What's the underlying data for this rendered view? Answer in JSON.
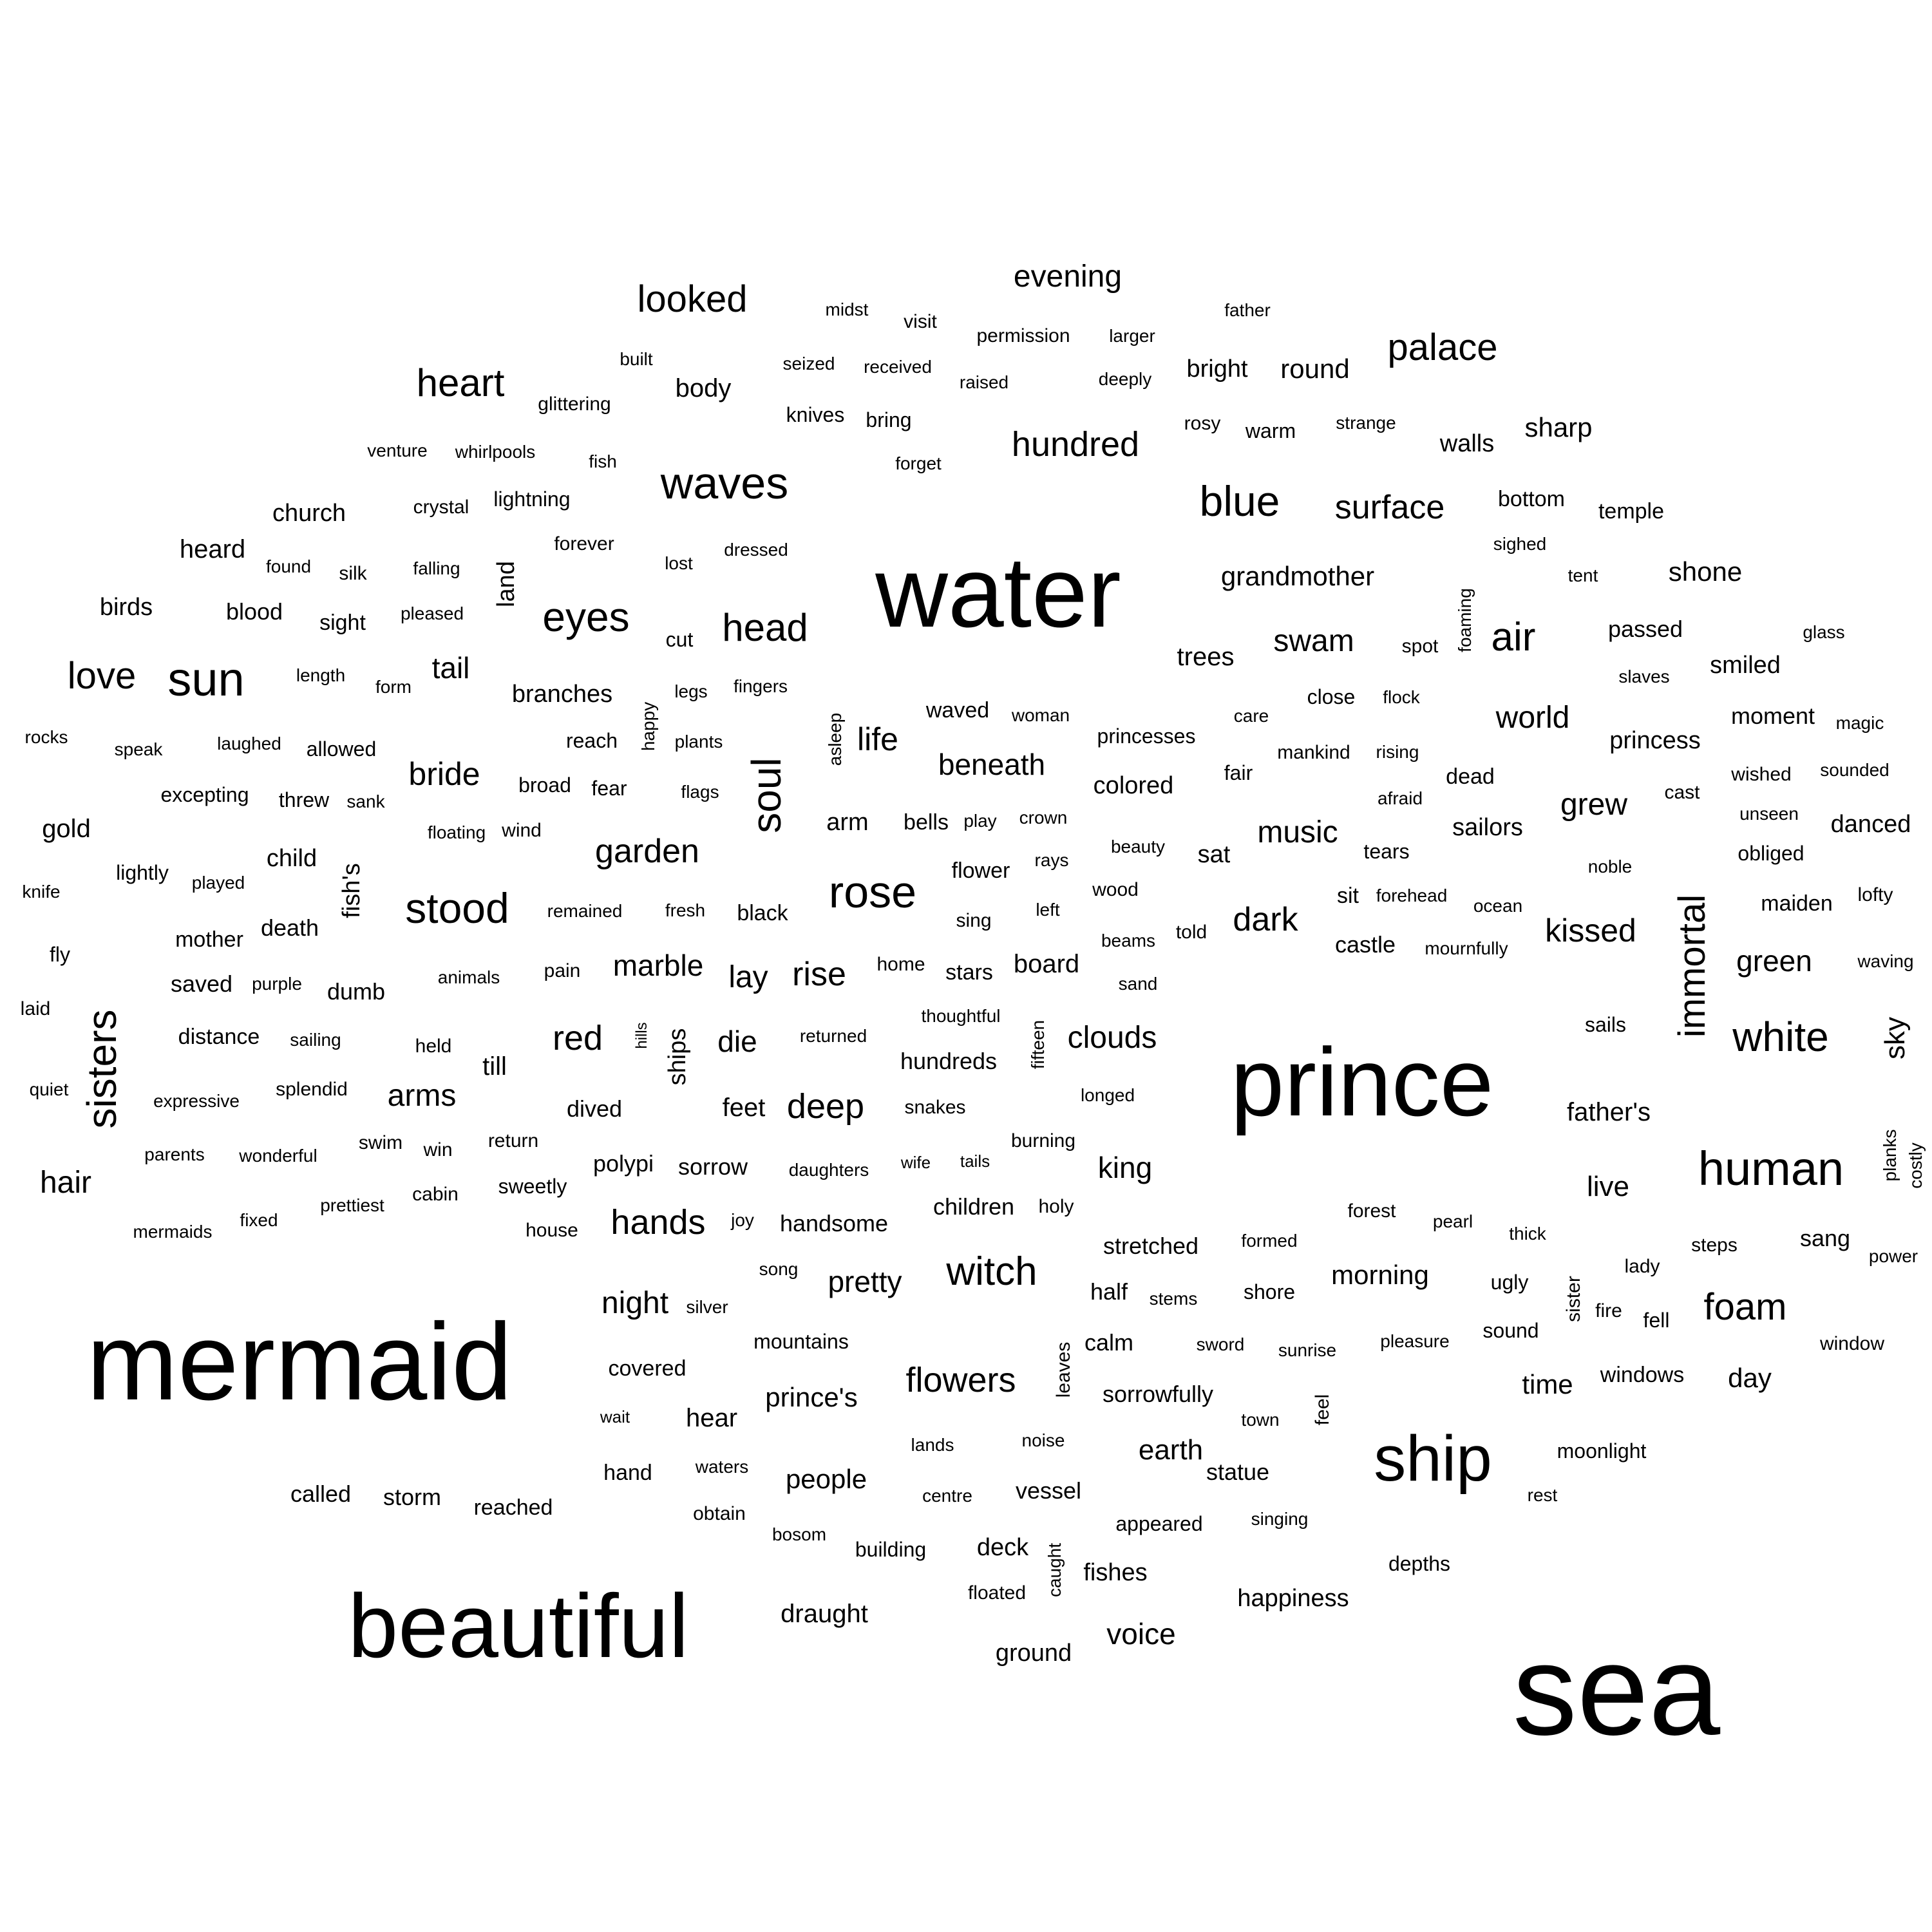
{
  "text_color": "#000000",
  "background": "#ffffff",
  "words": [
    {
      "text": "sea",
      "size": 28
    },
    {
      "text": "water",
      "size": 27
    },
    {
      "text": "prince",
      "size": 26
    },
    {
      "text": "mermaid",
      "size": 26
    },
    {
      "text": "beautiful",
      "size": 22
    },
    {
      "text": "ship",
      "size": 16
    },
    {
      "text": "waves",
      "size": 11
    },
    {
      "text": "human",
      "size": 11
    },
    {
      "text": "stood",
      "size": 11
    },
    {
      "text": "rose",
      "size": 11
    },
    {
      "text": "sun",
      "size": 11
    },
    {
      "text": "eyes",
      "size": 10
    },
    {
      "text": "blue",
      "size": 10
    },
    {
      "text": "white",
      "size": 10
    },
    {
      "text": "sisters",
      "size": 10
    },
    {
      "text": "soul",
      "size": 10
    },
    {
      "text": "immortal",
      "size": 10
    },
    {
      "text": "palace",
      "size": 9
    },
    {
      "text": "heart",
      "size": 9
    },
    {
      "text": "looked",
      "size": 9
    },
    {
      "text": "witch",
      "size": 9
    },
    {
      "text": "foam",
      "size": 9
    },
    {
      "text": "head",
      "size": 9
    },
    {
      "text": "love",
      "size": 9
    },
    {
      "text": "air",
      "size": 9
    },
    {
      "text": "hundred",
      "size": 8
    },
    {
      "text": "surface",
      "size": 8
    },
    {
      "text": "deep",
      "size": 8
    },
    {
      "text": "flowers",
      "size": 8
    },
    {
      "text": "hands",
      "size": 8
    },
    {
      "text": "garden",
      "size": 8
    },
    {
      "text": "red",
      "size": 8
    },
    {
      "text": "dark",
      "size": 8
    },
    {
      "text": "kissed",
      "size": 8
    },
    {
      "text": "evening",
      "size": 7
    },
    {
      "text": "swam",
      "size": 7
    },
    {
      "text": "world",
      "size": 7
    },
    {
      "text": "bride",
      "size": 7
    },
    {
      "text": "arms",
      "size": 7
    },
    {
      "text": "clouds",
      "size": 7
    },
    {
      "text": "rise",
      "size": 7
    },
    {
      "text": "lay",
      "size": 7
    },
    {
      "text": "music",
      "size": 7
    },
    {
      "text": "grew",
      "size": 7
    },
    {
      "text": "green",
      "size": 7
    },
    {
      "text": "king",
      "size": 7
    },
    {
      "text": "life",
      "size": 7
    },
    {
      "text": "hair",
      "size": 7
    },
    {
      "text": "marble",
      "size": 7
    },
    {
      "text": "night",
      "size": 7
    },
    {
      "text": "pretty",
      "size": 7
    },
    {
      "text": "beneath",
      "size": 7
    },
    {
      "text": "grandmother",
      "size": 7
    },
    {
      "text": "round",
      "size": 7
    },
    {
      "text": "sky",
      "size": 7
    },
    {
      "text": "sharp",
      "size": 7
    },
    {
      "text": "shone",
      "size": 7
    },
    {
      "text": "earth",
      "size": 7
    },
    {
      "text": "voice",
      "size": 7
    },
    {
      "text": "live",
      "size": 7
    },
    {
      "text": "morning",
      "size": 7
    },
    {
      "text": "people",
      "size": 7
    },
    {
      "text": "prince's",
      "size": 7
    },
    {
      "text": "time",
      "size": 7
    },
    {
      "text": "day",
      "size": 7
    },
    {
      "text": "bright",
      "size": 6
    },
    {
      "text": "walls",
      "size": 6
    },
    {
      "text": "body",
      "size": 6
    },
    {
      "text": "trees",
      "size": 6
    },
    {
      "text": "church",
      "size": 6
    },
    {
      "text": "heard",
      "size": 6
    },
    {
      "text": "birds",
      "size": 6
    },
    {
      "text": "blood",
      "size": 6
    },
    {
      "text": "tail",
      "size": 6
    },
    {
      "text": "branches",
      "size": 6
    },
    {
      "text": "gold",
      "size": 6
    },
    {
      "text": "child",
      "size": 6
    },
    {
      "text": "death",
      "size": 6
    },
    {
      "text": "mother",
      "size": 6
    },
    {
      "text": "saved",
      "size": 6
    },
    {
      "text": "dumb",
      "size": 6
    },
    {
      "text": "distance",
      "size": 6
    },
    {
      "text": "till",
      "size": 6
    },
    {
      "text": "die",
      "size": 6
    },
    {
      "text": "feet",
      "size": 6
    },
    {
      "text": "dived",
      "size": 6
    },
    {
      "text": "sorrow",
      "size": 6
    },
    {
      "text": "polypi",
      "size": 6
    },
    {
      "text": "handsome",
      "size": 6
    },
    {
      "text": "children",
      "size": 6
    },
    {
      "text": "hundreds",
      "size": 6
    },
    {
      "text": "colored",
      "size": 6
    },
    {
      "text": "princess",
      "size": 6
    },
    {
      "text": "moment",
      "size": 6
    },
    {
      "text": "smiled",
      "size": 6
    },
    {
      "text": "passed",
      "size": 6
    },
    {
      "text": "danced",
      "size": 6
    },
    {
      "text": "sailors",
      "size": 6
    },
    {
      "text": "castle",
      "size": 6
    },
    {
      "text": "sat",
      "size": 6
    },
    {
      "text": "father's",
      "size": 6
    },
    {
      "text": "sang",
      "size": 6
    },
    {
      "text": "half",
      "size": 6
    },
    {
      "text": "calm",
      "size": 6
    },
    {
      "text": "sorrowfully",
      "size": 6
    },
    {
      "text": "stretched",
      "size": 6
    },
    {
      "text": "statue",
      "size": 6
    },
    {
      "text": "happiness",
      "size": 6
    },
    {
      "text": "draught",
      "size": 6
    },
    {
      "text": "deck",
      "size": 6
    },
    {
      "text": "fishes",
      "size": 6
    },
    {
      "text": "hear",
      "size": 6
    },
    {
      "text": "covered",
      "size": 6
    },
    {
      "text": "storm",
      "size": 6
    },
    {
      "text": "called",
      "size": 6
    },
    {
      "text": "reached",
      "size": 6
    },
    {
      "text": "hand",
      "size": 6
    },
    {
      "text": "ground",
      "size": 6
    },
    {
      "text": "vessel",
      "size": 6
    },
    {
      "text": "appeared",
      "size": 6
    },
    {
      "text": "windows",
      "size": 6
    },
    {
      "text": "wind",
      "size": 5
    },
    {
      "text": "fear",
      "size": 5
    },
    {
      "text": "broad",
      "size": 5
    },
    {
      "text": "bells",
      "size": 5
    },
    {
      "text": "arm",
      "size": 5
    },
    {
      "text": "black",
      "size": 5
    },
    {
      "text": "board",
      "size": 5
    },
    {
      "text": "stars",
      "size": 5
    },
    {
      "text": "fresh",
      "size": 5
    },
    {
      "text": "remained",
      "size": 5
    },
    {
      "text": "pain",
      "size": 5
    },
    {
      "text": "animals",
      "size": 5
    },
    {
      "text": "held",
      "size": 5
    },
    {
      "text": "sailing",
      "size": 5
    },
    {
      "text": "purple",
      "size": 5
    },
    {
      "text": "splendid",
      "size": 5
    },
    {
      "text": "expressive",
      "size": 5
    },
    {
      "text": "swim",
      "size": 5
    },
    {
      "text": "win",
      "size": 5
    },
    {
      "text": "return",
      "size": 5
    },
    {
      "text": "sweetly",
      "size": 5
    },
    {
      "text": "cabin",
      "size": 5
    },
    {
      "text": "house",
      "size": 5
    },
    {
      "text": "parents",
      "size": 5
    },
    {
      "text": "wonderful",
      "size": 5
    },
    {
      "text": "prettiest",
      "size": 5
    },
    {
      "text": "mermaids",
      "size": 5
    },
    {
      "text": "fixed",
      "size": 5
    },
    {
      "text": "joy",
      "size": 5
    },
    {
      "text": "song",
      "size": 5
    },
    {
      "text": "silver",
      "size": 5
    },
    {
      "text": "mountains",
      "size": 5
    },
    {
      "text": "wait",
      "size": 5
    },
    {
      "text": "waters",
      "size": 5
    },
    {
      "text": "obtain",
      "size": 5
    },
    {
      "text": "bosom",
      "size": 5
    },
    {
      "text": "lands",
      "size": 5
    },
    {
      "text": "building",
      "size": 5
    },
    {
      "text": "centre",
      "size": 5
    },
    {
      "text": "noise",
      "size": 5
    },
    {
      "text": "floated",
      "size": 5
    },
    {
      "text": "daughters",
      "size": 5
    },
    {
      "text": "wife",
      "size": 5
    },
    {
      "text": "tails",
      "size": 5
    },
    {
      "text": "burning",
      "size": 5
    },
    {
      "text": "holy",
      "size": 5
    },
    {
      "text": "snakes",
      "size": 5
    },
    {
      "text": "thoughtful",
      "size": 5
    },
    {
      "text": "returned",
      "size": 5
    },
    {
      "text": "home",
      "size": 5
    },
    {
      "text": "sing",
      "size": 5
    },
    {
      "text": "left",
      "size": 5
    },
    {
      "text": "flower",
      "size": 5
    },
    {
      "text": "rays",
      "size": 5
    },
    {
      "text": "beauty",
      "size": 5
    },
    {
      "text": "wood",
      "size": 5
    },
    {
      "text": "beams",
      "size": 5
    },
    {
      "text": "sand",
      "size": 5
    },
    {
      "text": "told",
      "size": 5
    },
    {
      "text": "longed",
      "size": 5
    },
    {
      "text": "crown",
      "size": 5
    },
    {
      "text": "play",
      "size": 5
    },
    {
      "text": "waved",
      "size": 5
    },
    {
      "text": "woman",
      "size": 5
    },
    {
      "text": "princesses",
      "size": 5
    },
    {
      "text": "care",
      "size": 5
    },
    {
      "text": "fair",
      "size": 5
    },
    {
      "text": "mankind",
      "size": 5
    },
    {
      "text": "close",
      "size": 5
    },
    {
      "text": "flock",
      "size": 5
    },
    {
      "text": "rising",
      "size": 5
    },
    {
      "text": "afraid",
      "size": 5
    },
    {
      "text": "dead",
      "size": 5
    },
    {
      "text": "tears",
      "size": 5
    },
    {
      "text": "sit",
      "size": 5
    },
    {
      "text": "forehead",
      "size": 5
    },
    {
      "text": "ocean",
      "size": 5
    },
    {
      "text": "mournfully",
      "size": 5
    },
    {
      "text": "noble",
      "size": 5
    },
    {
      "text": "maiden",
      "size": 5
    },
    {
      "text": "obliged",
      "size": 5
    },
    {
      "text": "unseen",
      "size": 5
    },
    {
      "text": "lofty",
      "size": 5
    },
    {
      "text": "waving",
      "size": 5
    },
    {
      "text": "sails",
      "size": 5
    },
    {
      "text": "slaves",
      "size": 5
    },
    {
      "text": "magic",
      "size": 5
    },
    {
      "text": "sounded",
      "size": 5
    },
    {
      "text": "wished",
      "size": 5
    },
    {
      "text": "cast",
      "size": 5
    },
    {
      "text": "glass",
      "size": 5
    },
    {
      "text": "tent",
      "size": 5
    },
    {
      "text": "spot",
      "size": 5
    },
    {
      "text": "sighed",
      "size": 5
    },
    {
      "text": "bottom",
      "size": 5
    },
    {
      "text": "temple",
      "size": 5
    },
    {
      "text": "warm",
      "size": 5
    },
    {
      "text": "strange",
      "size": 5
    },
    {
      "text": "rosy",
      "size": 5
    },
    {
      "text": "father",
      "size": 5
    },
    {
      "text": "larger",
      "size": 5
    },
    {
      "text": "deeply",
      "size": 5
    },
    {
      "text": "permission",
      "size": 5
    },
    {
      "text": "raised",
      "size": 5
    },
    {
      "text": "visit",
      "size": 5
    },
    {
      "text": "midst",
      "size": 5
    },
    {
      "text": "received",
      "size": 5
    },
    {
      "text": "seized",
      "size": 5
    },
    {
      "text": "built",
      "size": 5
    },
    {
      "text": "knives",
      "size": 5
    },
    {
      "text": "bring",
      "size": 5
    },
    {
      "text": "forget",
      "size": 5
    },
    {
      "text": "glittering",
      "size": 5
    },
    {
      "text": "venture",
      "size": 5
    },
    {
      "text": "whirlpools",
      "size": 5
    },
    {
      "text": "fish",
      "size": 5
    },
    {
      "text": "crystal",
      "size": 5
    },
    {
      "text": "lightning",
      "size": 5
    },
    {
      "text": "forever",
      "size": 5
    },
    {
      "text": "dressed",
      "size": 5
    },
    {
      "text": "lost",
      "size": 5
    },
    {
      "text": "found",
      "size": 5
    },
    {
      "text": "silk",
      "size": 5
    },
    {
      "text": "falling",
      "size": 5
    },
    {
      "text": "sight",
      "size": 5
    },
    {
      "text": "pleased",
      "size": 5
    },
    {
      "text": "cut",
      "size": 5
    },
    {
      "text": "length",
      "size": 5
    },
    {
      "text": "form",
      "size": 5
    },
    {
      "text": "legs",
      "size": 5
    },
    {
      "text": "fingers",
      "size": 5
    },
    {
      "text": "rocks",
      "size": 5
    },
    {
      "text": "speak",
      "size": 5
    },
    {
      "text": "laughed",
      "size": 5
    },
    {
      "text": "allowed",
      "size": 5
    },
    {
      "text": "reach",
      "size": 5
    },
    {
      "text": "plants",
      "size": 5
    },
    {
      "text": "excepting",
      "size": 5
    },
    {
      "text": "threw",
      "size": 5
    },
    {
      "text": "sank",
      "size": 5
    },
    {
      "text": "flags",
      "size": 5
    },
    {
      "text": "floating",
      "size": 5
    },
    {
      "text": "knife",
      "size": 5
    },
    {
      "text": "lightly",
      "size": 5
    },
    {
      "text": "played",
      "size": 5
    },
    {
      "text": "fly",
      "size": 5
    },
    {
      "text": "laid",
      "size": 5
    },
    {
      "text": "quiet",
      "size": 5
    },
    {
      "text": "forest",
      "size": 5
    },
    {
      "text": "pearl",
      "size": 5
    },
    {
      "text": "thick",
      "size": 5
    },
    {
      "text": "formed",
      "size": 5
    },
    {
      "text": "steps",
      "size": 5
    },
    {
      "text": "lady",
      "size": 5
    },
    {
      "text": "power",
      "size": 5
    },
    {
      "text": "shore",
      "size": 5
    },
    {
      "text": "stems",
      "size": 5
    },
    {
      "text": "ugly",
      "size": 5
    },
    {
      "text": "fire",
      "size": 5
    },
    {
      "text": "fell",
      "size": 5
    },
    {
      "text": "sound",
      "size": 5
    },
    {
      "text": "pleasure",
      "size": 5
    },
    {
      "text": "sword",
      "size": 5
    },
    {
      "text": "sunrise",
      "size": 5
    },
    {
      "text": "window",
      "size": 5
    },
    {
      "text": "town",
      "size": 5
    },
    {
      "text": "moonlight",
      "size": 5
    },
    {
      "text": "rest",
      "size": 5
    },
    {
      "text": "singing",
      "size": 5
    },
    {
      "text": "depths",
      "size": 5
    },
    {
      "text": "land",
      "size": 5
    },
    {
      "text": "happy",
      "size": 4
    },
    {
      "text": "asleep",
      "size": 4
    },
    {
      "text": "fish's",
      "size": 5
    },
    {
      "text": "hills",
      "size": 4
    },
    {
      "text": "ships",
      "size": 5
    },
    {
      "text": "fifteen",
      "size": 4
    },
    {
      "text": "foaming",
      "size": 4
    },
    {
      "text": "planks",
      "size": 4
    },
    {
      "text": "costly",
      "size": 4
    },
    {
      "text": "sister",
      "size": 5
    },
    {
      "text": "leaves",
      "size": 5
    },
    {
      "text": "feel",
      "size": 5
    },
    {
      "text": "caught",
      "size": 4
    }
  ]
}
